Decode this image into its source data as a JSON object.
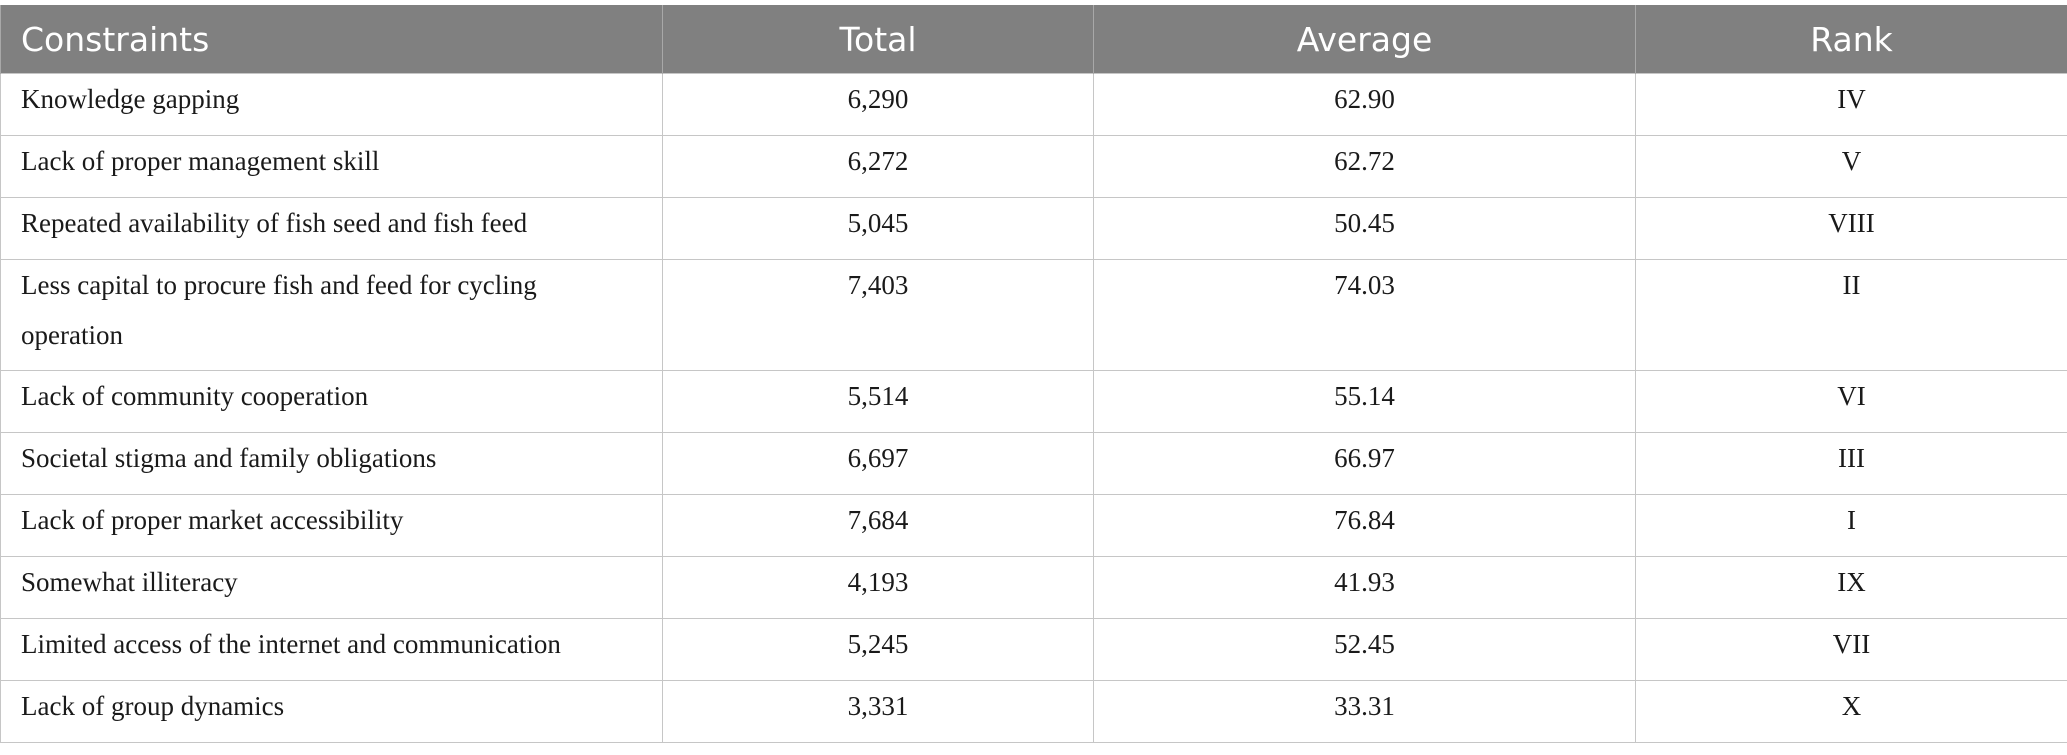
{
  "table": {
    "columns": [
      "Constraints",
      "Total",
      "Average",
      "Rank"
    ],
    "rows": [
      {
        "constraint": "Knowledge gapping",
        "total": "6,290",
        "average": "62.90",
        "rank": "IV"
      },
      {
        "constraint": "Lack of proper management skill",
        "total": "6,272",
        "average": "62.72",
        "rank": "V"
      },
      {
        "constraint": "Repeated availability of fish seed and fish feed",
        "total": "5,045",
        "average": "50.45",
        "rank": "VIII"
      },
      {
        "constraint": "Less capital to procure fish and feed for cycling operation",
        "total": "7,403",
        "average": "74.03",
        "rank": "II"
      },
      {
        "constraint": "Lack of community cooperation",
        "total": "5,514",
        "average": "55.14",
        "rank": "VI"
      },
      {
        "constraint": "Societal stigma and family obligations",
        "total": "6,697",
        "average": "66.97",
        "rank": "III"
      },
      {
        "constraint": "Lack of proper market accessibility",
        "total": "7,684",
        "average": "76.84",
        "rank": "I"
      },
      {
        "constraint": "Somewhat illiteracy",
        "total": "4,193",
        "average": "41.93",
        "rank": "IX"
      },
      {
        "constraint": "Limited access of the internet and communication",
        "total": "5,245",
        "average": "52.45",
        "rank": "VII"
      },
      {
        "constraint": "Lack of group dynamics",
        "total": "3,331",
        "average": "33.31",
        "rank": "X"
      }
    ]
  },
  "colors": {
    "header_bg": "#808080",
    "header_text": "#ffffff",
    "border": "#c6c6c6"
  }
}
